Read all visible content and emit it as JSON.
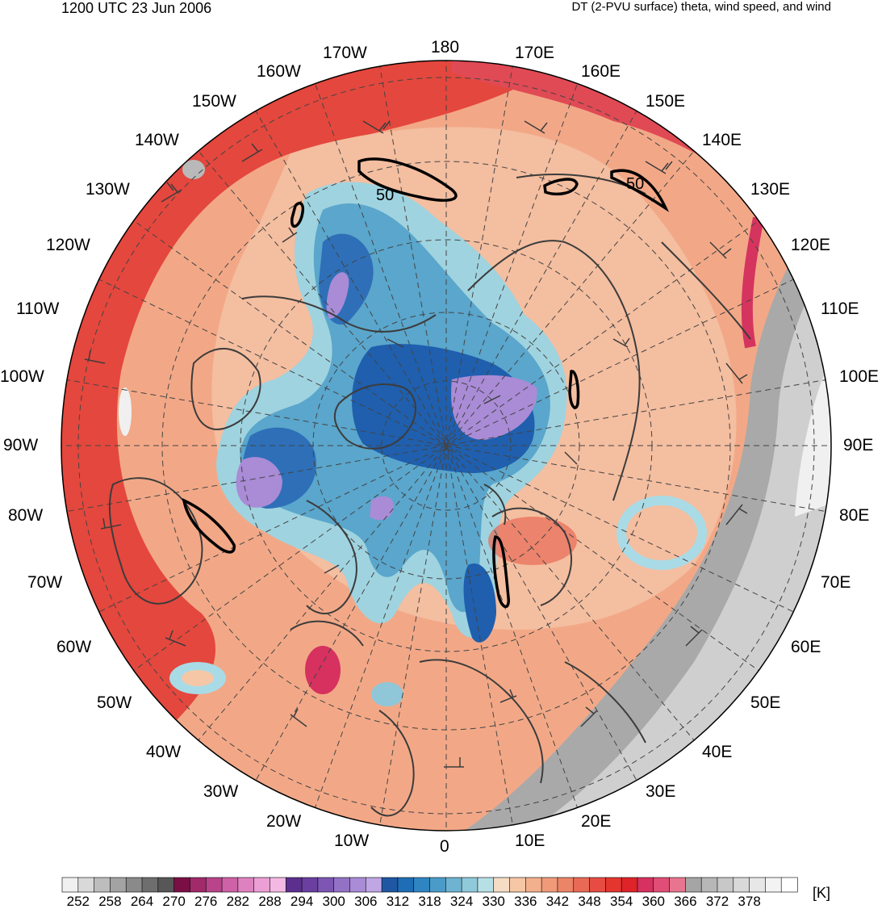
{
  "header": {
    "title_left": "1200 UTC 23 Jun 2006",
    "title_right": "DT (2-PVU surface) theta, wind speed, and wind"
  },
  "map": {
    "projection": "north-polar-stereographic",
    "center_label": "0",
    "longitude_labels": [
      "180",
      "170E",
      "160E",
      "150E",
      "140E",
      "130E",
      "120E",
      "110E",
      "100E",
      "90E",
      "80E",
      "70E",
      "60E",
      "50E",
      "40E",
      "30E",
      "20E",
      "10E",
      "0",
      "10W",
      "20W",
      "30W",
      "40W",
      "50W",
      "60W",
      "70W",
      "80W",
      "90W",
      "100W",
      "110W",
      "120W",
      "130W",
      "140W",
      "150W",
      "160W",
      "170W"
    ],
    "contour_labels": [
      "50",
      "50"
    ],
    "colors": {
      "warm_fill": "#f08a70",
      "hot_fill": "#e5352f",
      "cold_fill": "#1f6db5",
      "light_blue": "#a9dbe6",
      "purple": "#a98bd6",
      "gray": "#b0b0b0",
      "coast": "#404040"
    }
  },
  "colorbar": {
    "unit": "[K]",
    "tick_labels": [
      "252",
      "258",
      "264",
      "270",
      "276",
      "282",
      "288",
      "294",
      "300",
      "306",
      "312",
      "318",
      "324",
      "330",
      "336",
      "342",
      "348",
      "354",
      "360",
      "366",
      "372",
      "378"
    ],
    "colors": [
      "#f0f0f0",
      "#d9d9d9",
      "#bdbdbd",
      "#a3a3a3",
      "#8a8a8a",
      "#6e6e6e",
      "#575757",
      "#7a0f45",
      "#a02a6a",
      "#b8448a",
      "#cd62a6",
      "#de82bf",
      "#ec9fd4",
      "#f4b9e2",
      "#5c2f8f",
      "#6a3fa0",
      "#7d56b3",
      "#9372c6",
      "#a98bd6",
      "#bfa7e4",
      "#1f57a3",
      "#1f6db5",
      "#2e85c2",
      "#4a9bc8",
      "#6eb4d1",
      "#90c9d9",
      "#b7e0e6",
      "#f6dcc4",
      "#f6c7a6",
      "#f2b08d",
      "#f09a7a",
      "#ec8468",
      "#e86a55",
      "#e64c43",
      "#e5352f",
      "#de2329",
      "#d6315f",
      "#e04e77",
      "#e8758f",
      "#a5a5a5",
      "#b7b7b7",
      "#c8c8c8",
      "#d9d9d9",
      "#e7e7e7",
      "#f3f3f3",
      "#ffffff"
    ]
  }
}
